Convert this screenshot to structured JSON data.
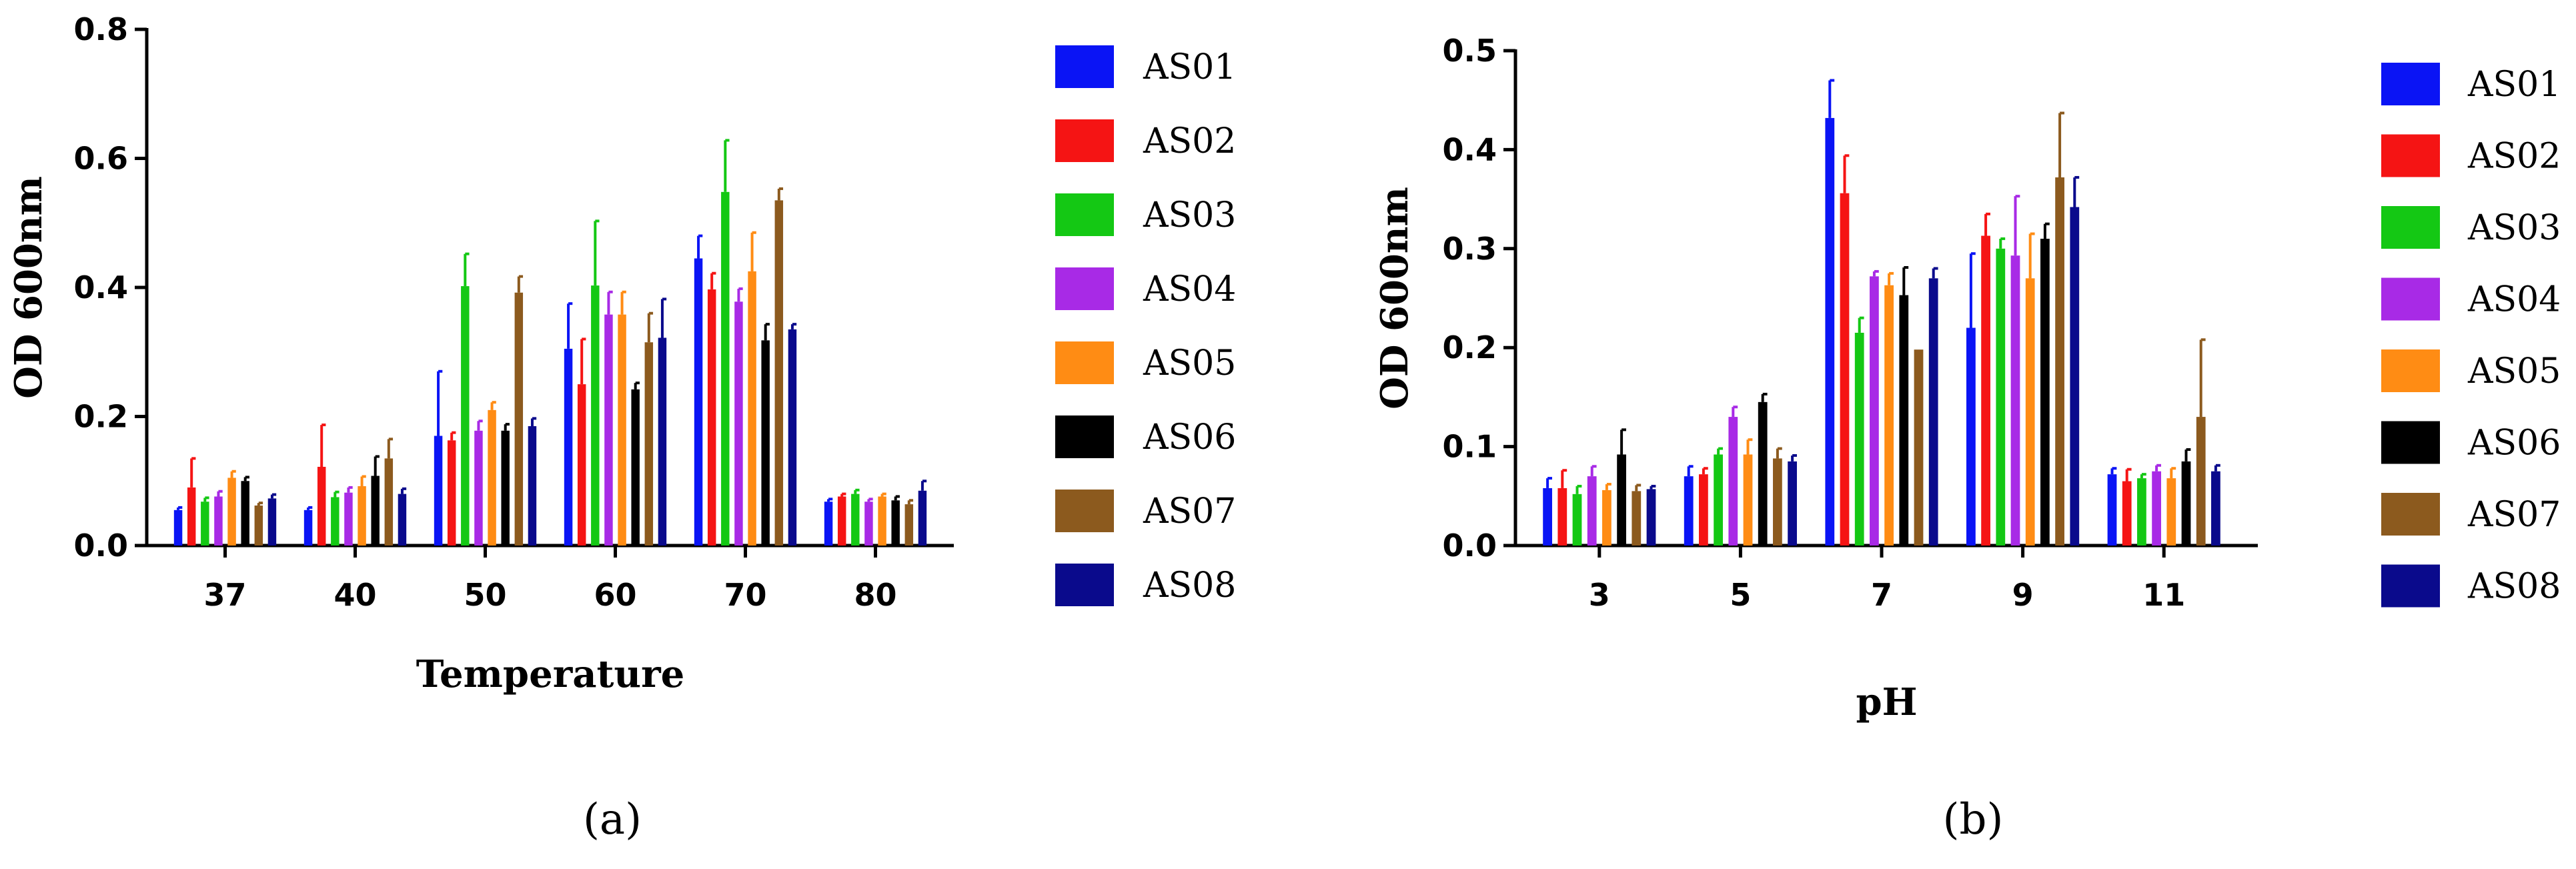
{
  "series_colors": [
    "#0a14f5",
    "#f51414",
    "#14c814",
    "#a82ae6",
    "#ff8c14",
    "#000000",
    "#8c5a1e",
    "#0a0a8c"
  ],
  "chart_data": [
    {
      "type": "bar",
      "panel_label": "(a)",
      "xlabel": "Temperature",
      "ylabel": "OD 600nm",
      "ylim": [
        0,
        0.8
      ],
      "yticks": [
        "0.0",
        "0.2",
        "0.4",
        "0.6",
        "0.8"
      ],
      "categories": [
        "37",
        "40",
        "50",
        "60",
        "70",
        "80"
      ],
      "series": [
        {
          "name": "AS01",
          "values": [
            0.055,
            0.055,
            0.17,
            0.305,
            0.445,
            0.068
          ],
          "errors": [
            0.004,
            0.004,
            0.1,
            0.07,
            0.035,
            0.004
          ]
        },
        {
          "name": "AS02",
          "values": [
            0.09,
            0.122,
            0.163,
            0.25,
            0.397,
            0.076
          ],
          "errors": [
            0.045,
            0.065,
            0.012,
            0.07,
            0.025,
            0.004
          ]
        },
        {
          "name": "AS03",
          "values": [
            0.068,
            0.075,
            0.402,
            0.403,
            0.548,
            0.08
          ],
          "errors": [
            0.006,
            0.008,
            0.05,
            0.1,
            0.08,
            0.006
          ]
        },
        {
          "name": "AS04",
          "values": [
            0.076,
            0.082,
            0.178,
            0.358,
            0.378,
            0.068
          ],
          "errors": [
            0.008,
            0.008,
            0.015,
            0.035,
            0.02,
            0.004
          ]
        },
        {
          "name": "AS05",
          "values": [
            0.105,
            0.092,
            0.21,
            0.358,
            0.425,
            0.076
          ],
          "errors": [
            0.01,
            0.015,
            0.012,
            0.035,
            0.06,
            0.004
          ]
        },
        {
          "name": "AS06",
          "values": [
            0.1,
            0.108,
            0.178,
            0.242,
            0.318,
            0.07
          ],
          "errors": [
            0.006,
            0.03,
            0.01,
            0.01,
            0.025,
            0.006
          ]
        },
        {
          "name": "AS07",
          "values": [
            0.062,
            0.135,
            0.392,
            0.315,
            0.535,
            0.064
          ],
          "errors": [
            0.004,
            0.03,
            0.025,
            0.045,
            0.018,
            0.006
          ]
        },
        {
          "name": "AS08",
          "values": [
            0.073,
            0.08,
            0.185,
            0.322,
            0.335,
            0.085
          ],
          "errors": [
            0.006,
            0.008,
            0.012,
            0.06,
            0.008,
            0.015
          ]
        }
      ]
    },
    {
      "type": "bar",
      "panel_label": "(b)",
      "xlabel": "pH",
      "ylabel": "OD 600nm",
      "ylim": [
        0,
        0.5
      ],
      "yticks": [
        "0.0",
        "0.1",
        "0.2",
        "0.3",
        "0.4",
        "0.5"
      ],
      "categories": [
        "3",
        "5",
        "7",
        "9",
        "11"
      ],
      "series": [
        {
          "name": "AS01",
          "values": [
            0.058,
            0.07,
            0.432,
            0.22,
            0.072
          ],
          "errors": [
            0.01,
            0.01,
            0.038,
            0.075,
            0.006
          ]
        },
        {
          "name": "AS02",
          "values": [
            0.058,
            0.072,
            0.356,
            0.313,
            0.065
          ],
          "errors": [
            0.018,
            0.006,
            0.038,
            0.022,
            0.012
          ]
        },
        {
          "name": "AS03",
          "values": [
            0.052,
            0.092,
            0.215,
            0.3,
            0.068
          ],
          "errors": [
            0.008,
            0.006,
            0.015,
            0.01,
            0.004
          ]
        },
        {
          "name": "AS04",
          "values": [
            0.07,
            0.13,
            0.272,
            0.293,
            0.075
          ],
          "errors": [
            0.01,
            0.01,
            0.005,
            0.06,
            0.006
          ]
        },
        {
          "name": "AS05",
          "values": [
            0.056,
            0.092,
            0.263,
            0.27,
            0.068
          ],
          "errors": [
            0.006,
            0.015,
            0.012,
            0.045,
            0.01
          ]
        },
        {
          "name": "AS06",
          "values": [
            0.092,
            0.145,
            0.253,
            0.31,
            0.085
          ],
          "errors": [
            0.025,
            0.008,
            0.028,
            0.015,
            0.012
          ]
        },
        {
          "name": "AS07",
          "values": [
            0.055,
            0.088,
            0.198,
            0.372,
            0.13
          ],
          "errors": [
            0.006,
            0.01,
            0.0,
            0.065,
            0.078
          ]
        },
        {
          "name": "AS08",
          "values": [
            0.057,
            0.085,
            0.27,
            0.342,
            0.075
          ],
          "errors": [
            0.003,
            0.006,
            0.01,
            0.03,
            0.006
          ]
        }
      ]
    }
  ]
}
